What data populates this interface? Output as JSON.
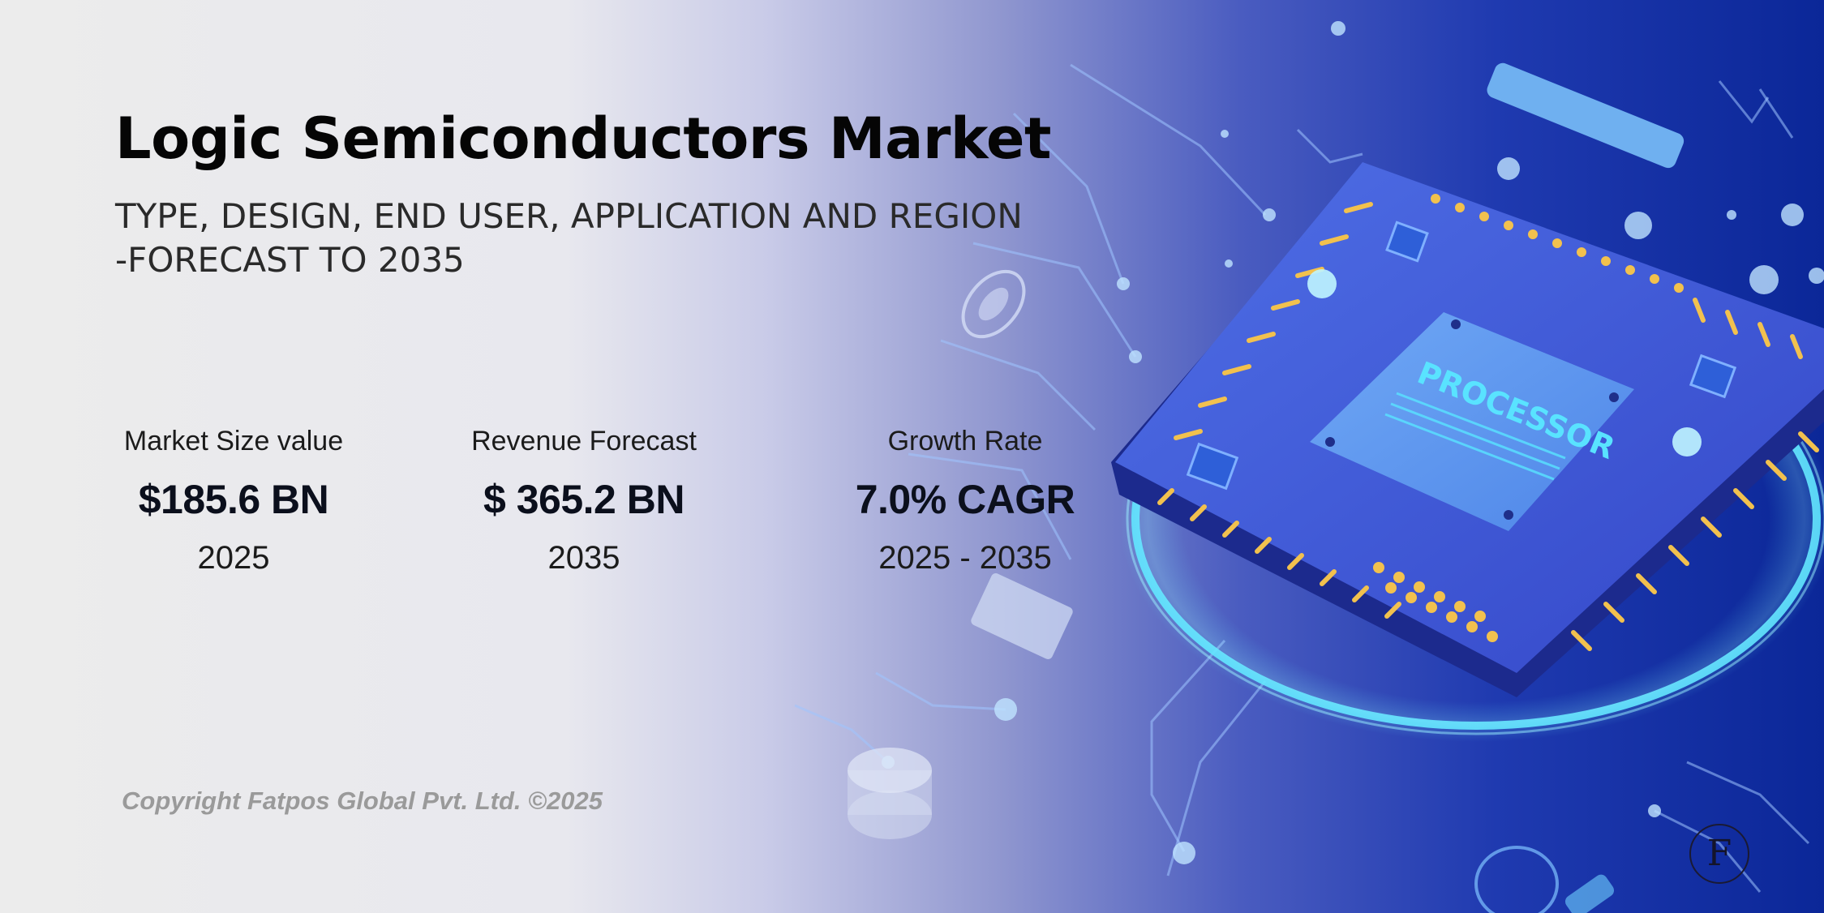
{
  "header": {
    "title": "Logic Semiconductors Market",
    "subtitle_line1": "TYPE, DESIGN, END USER, APPLICATION AND REGION",
    "subtitle_line2": "-FORECAST TO 2035"
  },
  "stats": [
    {
      "label": "Market Size value",
      "value": "$185.6 BN",
      "year": "2025"
    },
    {
      "label": "Revenue Forecast",
      "value": "$ 365.2 BN",
      "year": "2035"
    },
    {
      "label": "Growth Rate",
      "value": "7.0% CAGR",
      "year": "2025 - 2035"
    }
  ],
  "footer": {
    "copyright": "Copyright Fatpos Global Pvt. Ltd. ©2025",
    "logo_letter": "F"
  },
  "illustration": {
    "chip_label": "PROCESSOR",
    "colors": {
      "background": "#ececec",
      "deep_blue": "#0d2a9a",
      "accent_cyan": "#5fe6ff",
      "chip_gold": "#f2c14e"
    }
  }
}
